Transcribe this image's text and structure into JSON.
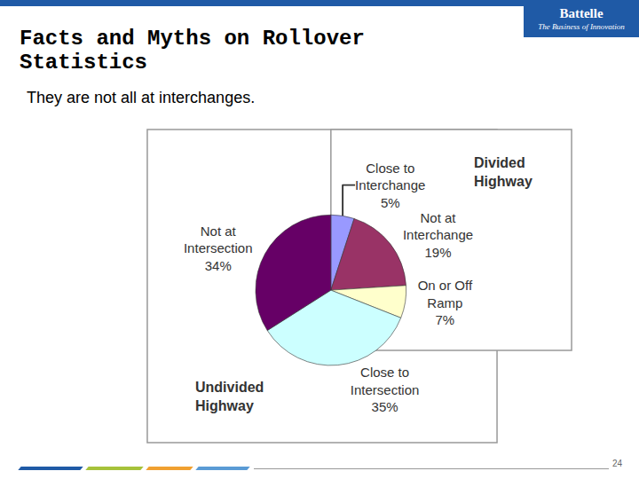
{
  "slide": {
    "logo": "Battelle",
    "tagline": "The Business of Innovation",
    "page_number": 24
  },
  "chart_data": {
    "type": "pie",
    "title": "Facts and Myths on Rollover Statistics",
    "subtitle": "They are not all at interchanges.",
    "categories": [
      "Close to Interchange",
      "Not at Interchange",
      "On or Off Ramp",
      "Close to Intersection",
      "Not at Intersection"
    ],
    "values": [
      5,
      19,
      7,
      35,
      34
    ],
    "value_labels": [
      "5%",
      "19%",
      "7%",
      "35%",
      "34%"
    ],
    "colors": [
      "#9999ff",
      "#993366",
      "#ffffcc",
      "#ccffff",
      "#660066"
    ],
    "data_labels": true,
    "annotations": [
      "Divided Highway",
      "Undivided Highway"
    ]
  }
}
